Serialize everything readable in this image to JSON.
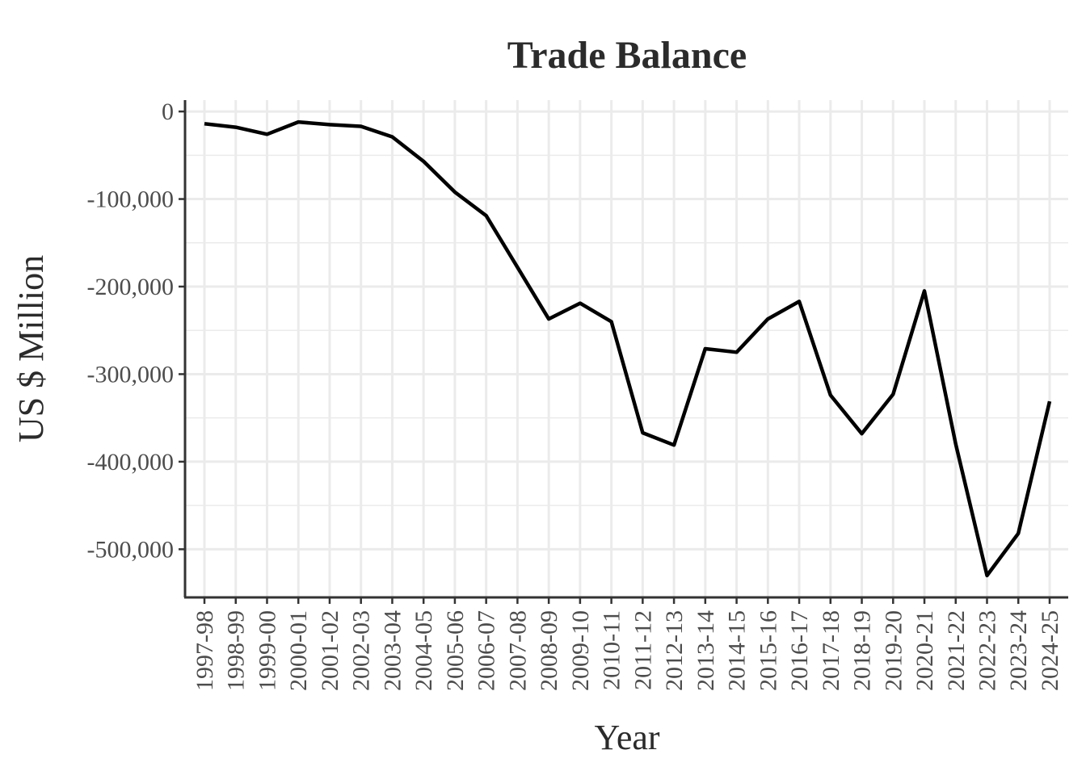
{
  "chart_data": {
    "type": "line",
    "title": "Trade Balance",
    "xlabel": "Year",
    "ylabel": "US $ Million",
    "ylim": [
      -555000,
      13000
    ],
    "y_ticks": [
      0,
      -100000,
      -200000,
      -300000,
      -400000,
      -500000
    ],
    "y_tick_labels": [
      "0",
      "-100,000",
      "-200,000",
      "-300,000",
      "-400,000",
      "-500,000"
    ],
    "grid": true,
    "categories": [
      "1997-98",
      "1998-99",
      "1999-00",
      "2000-01",
      "2001-02",
      "2002-03",
      "2003-04",
      "2004-05",
      "2005-06",
      "2006-07",
      "2007-08",
      "2008-09",
      "2009-10",
      "2010-11",
      "2011-12",
      "2012-13",
      "2013-14",
      "2014-15",
      "2015-16",
      "2016-17",
      "2017-18",
      "2018-19",
      "2019-20",
      "2020-21",
      "2021-22",
      "2022-23",
      "2023-24",
      "2024-25"
    ],
    "series": [
      {
        "color": "#000000",
        "values": [
          -14000,
          -18000,
          -26000,
          -12000,
          -15000,
          -17000,
          -29000,
          -57000,
          -92000,
          -119000,
          -178000,
          -237000,
          -219000,
          -240000,
          -367000,
          -381000,
          -271000,
          -275000,
          -237000,
          -217000,
          -324000,
          -368000,
          -323000,
          -205000,
          -380000,
          -530000,
          -482000,
          -331000
        ]
      }
    ]
  }
}
